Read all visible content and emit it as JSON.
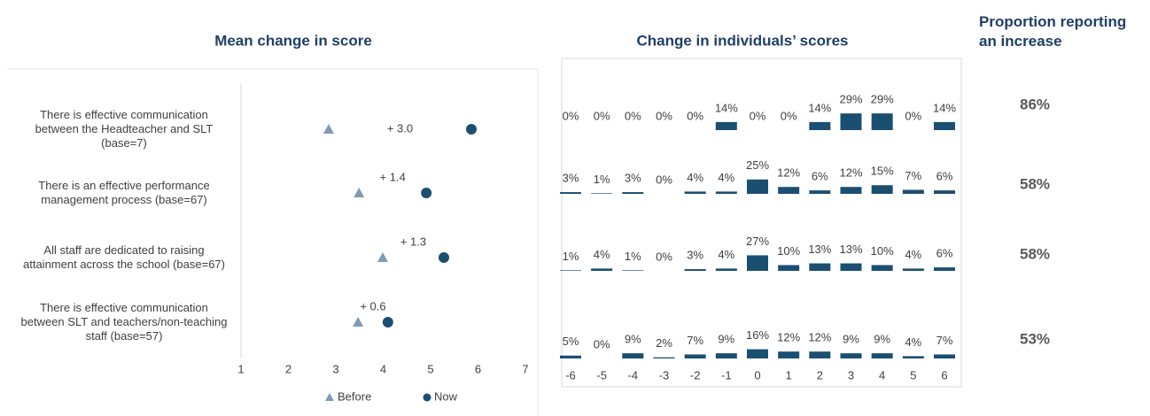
{
  "chart_data": [
    {
      "type": "dumbbell",
      "title": "Mean change in score",
      "categories": [
        "There is effective communication between the Headteacher and SLT (base=7)",
        "There is an effective performance management process (base=67)",
        "All staff are dedicated to raising attainment across the school (base=67)",
        "There is effective communication between SLT and teachers/non-teaching staff (base=57)"
      ],
      "series": [
        {
          "name": "Before",
          "color": "#7f9bb3",
          "values": [
            2.85,
            3.49,
            3.99,
            3.47
          ]
        },
        {
          "name": "Now",
          "color": "#1b4f72",
          "values": [
            5.86,
            4.91,
            5.28,
            4.1
          ]
        }
      ],
      "annotations": [
        "+ 3.0",
        "+ 1.4",
        "+ 1.3",
        "+ 0.6"
      ],
      "xlim": [
        1,
        7
      ],
      "xticks": [
        1,
        2,
        3,
        4,
        5,
        6,
        7
      ]
    },
    {
      "type": "bar-grid",
      "title": "Change in individuals’ scores",
      "color": "#1b4f72",
      "x": [
        -6,
        -5,
        -4,
        -3,
        -2,
        -1,
        0,
        1,
        2,
        3,
        4,
        5,
        6
      ],
      "rows": [
        {
          "values": [
            0,
            0,
            0,
            0,
            0,
            14,
            0,
            0,
            14,
            29,
            29,
            0,
            14
          ],
          "value_labels": [
            "0%",
            "0%",
            "0%",
            "0%",
            "0%",
            "14%",
            "0%",
            "0%",
            "14%",
            "29%",
            "29%",
            "0%",
            "14%"
          ]
        },
        {
          "values": [
            3,
            1,
            3,
            0,
            4,
            4,
            25,
            12,
            6,
            12,
            15,
            7,
            6
          ],
          "value_labels": [
            "3%",
            "1%",
            "3%",
            "0%",
            "4%",
            "4%",
            "25%",
            "12%",
            "6%",
            "12%",
            "15%",
            "7%",
            "6%"
          ]
        },
        {
          "values": [
            1,
            4,
            1,
            0,
            3,
            4,
            27,
            10,
            13,
            13,
            10,
            4,
            6
          ],
          "value_labels": [
            "1%",
            "4%",
            "1%",
            "0%",
            "3%",
            "4%",
            "27%",
            "10%",
            "13%",
            "13%",
            "10%",
            "4%",
            "6%"
          ]
        },
        {
          "values": [
            5,
            0,
            9,
            2,
            7,
            9,
            16,
            12,
            12,
            9,
            9,
            4,
            7
          ],
          "value_labels": [
            "5%",
            "0%",
            "9%",
            "2%",
            "7%",
            "9%",
            "16%",
            "12%",
            "12%",
            "9%",
            "9%",
            "4%",
            "7%"
          ]
        }
      ]
    },
    {
      "type": "table",
      "title": "Proportion reporting an increase",
      "values": [
        86,
        58,
        58,
        53
      ],
      "value_labels": [
        "86%",
        "58%",
        "58%",
        "53%"
      ]
    }
  ]
}
